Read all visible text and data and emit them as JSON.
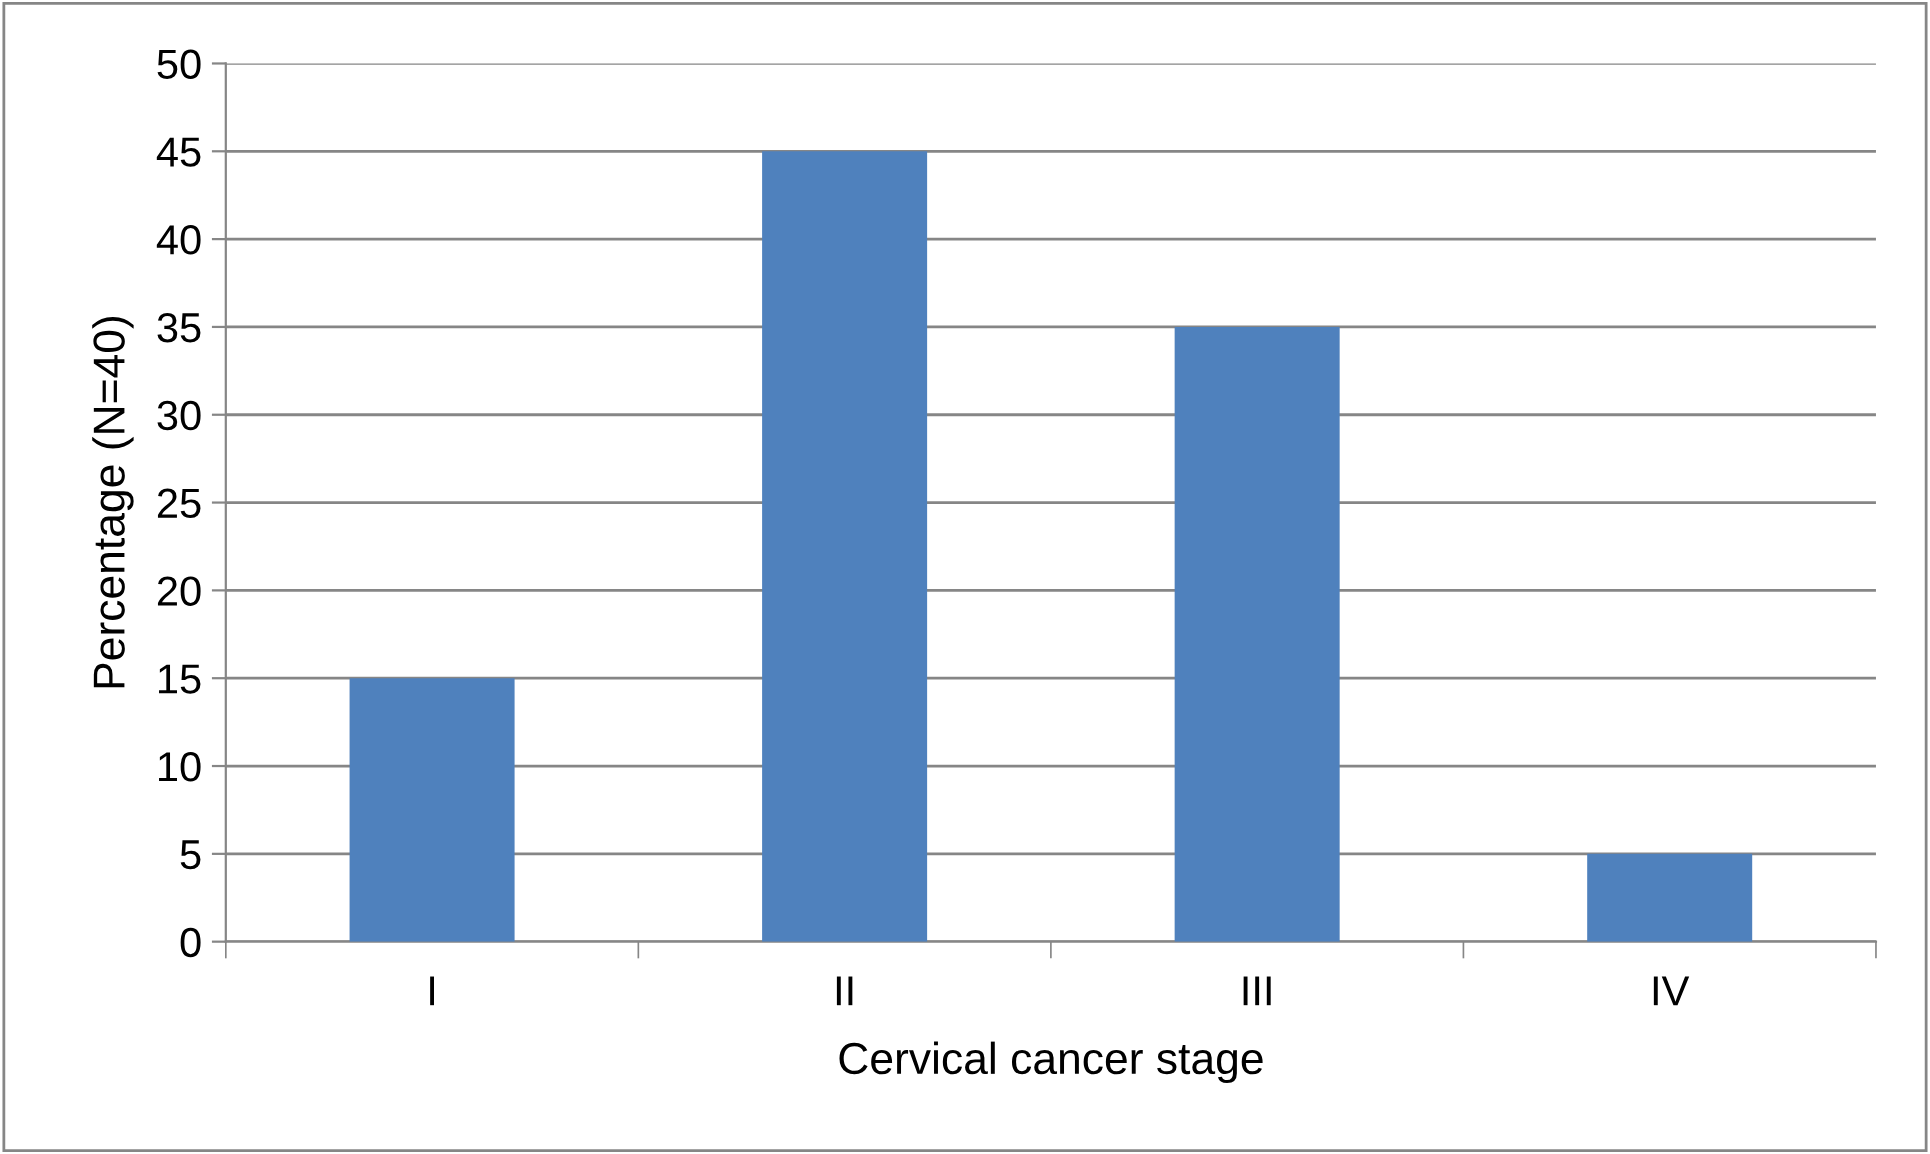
{
  "chart_data": {
    "type": "bar",
    "xlabel": "Cervical cancer stage",
    "ylabel": "Percentage (N=40)",
    "categories": [
      "I",
      "II",
      "III",
      "IV"
    ],
    "values": [
      15,
      45,
      35,
      5
    ],
    "color": "#4f81bd",
    "ylim": [
      0,
      50
    ],
    "yticks": [
      0,
      5,
      10,
      15,
      20,
      25,
      30,
      35,
      40,
      45,
      50
    ],
    "grid": "y",
    "legend": false
  }
}
